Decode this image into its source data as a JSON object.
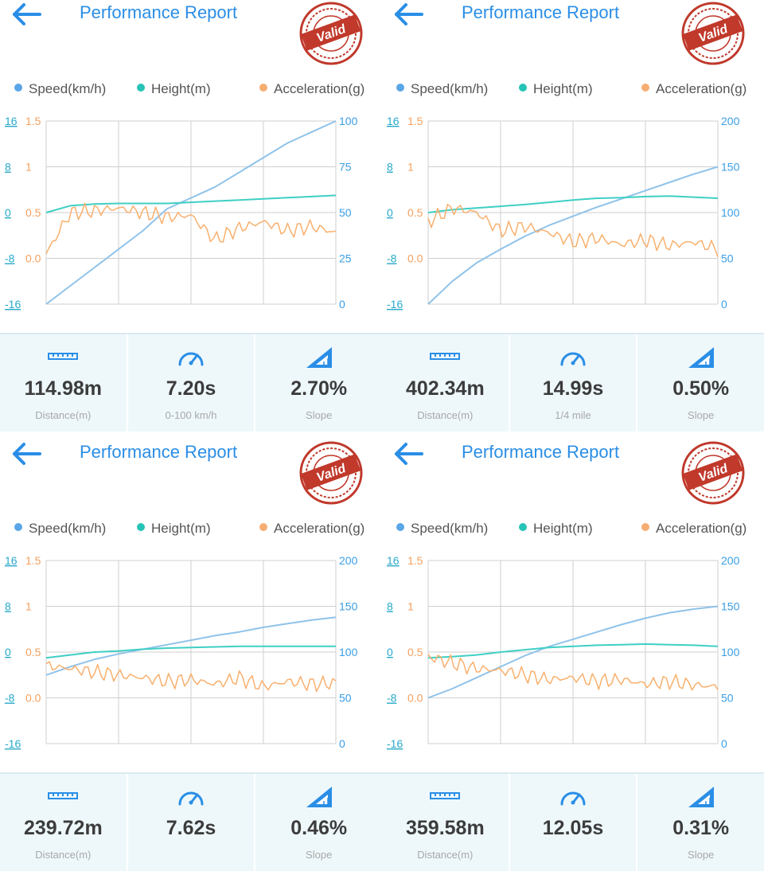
{
  "colors": {
    "accent": "#2a8ee6",
    "speed": "#8fc3ea",
    "height": "#3fcfc4",
    "accel": "#f8b06e",
    "stamp": "#c0392b"
  },
  "icons": {
    "back": "arrow-left-icon",
    "stamp": "valid-stamp",
    "distance": "ruler-icon",
    "time": "speedometer-icon",
    "slope": "slope-icon"
  },
  "panels": [
    {
      "title": "Performance Report",
      "stamp": "Valid",
      "legend": [
        "Speed(km/h)",
        "Height(m)",
        "Acceleration(g)"
      ],
      "axes": {
        "height_ticks": [
          "16",
          "8",
          "0",
          "-8",
          "-16"
        ],
        "accel_ticks": [
          "1.5",
          "1",
          "0.5",
          "0.0"
        ],
        "speed_ticks": [
          "100",
          "75",
          "50",
          "25",
          "0"
        ]
      },
      "stats": [
        {
          "value": "114.98m",
          "label": "Distance(m)"
        },
        {
          "value": "7.20s",
          "label": "0-100 km/h"
        },
        {
          "value": "2.70%",
          "label": "Slope"
        }
      ],
      "chart_data": {
        "type": "line",
        "speed_max": 100,
        "series": [
          {
            "name": "Speed(km/h)",
            "axis": "right",
            "values": [
              0,
              10,
              20,
              30,
              40,
              52,
              58,
              64,
              72,
              80,
              88,
              94,
              100
            ]
          },
          {
            "name": "Height(m)",
            "axis": "left",
            "values": [
              0,
              1.2,
              1.5,
              1.6,
              1.6,
              1.6,
              1.8,
              2.0,
              2.2,
              2.4,
              2.6,
              2.8,
              3.0
            ]
          },
          {
            "name": "Acceleration(g)",
            "axis": "left2",
            "values": [
              0.05,
              0.5,
              0.52,
              0.55,
              0.5,
              0.45,
              0.47,
              0.2,
              0.33,
              0.4,
              0.3,
              0.35,
              0.28
            ]
          }
        ]
      }
    },
    {
      "title": "Performance Report",
      "stamp": "Valid",
      "legend": [
        "Speed(km/h)",
        "Height(m)",
        "Acceleration(g)"
      ],
      "axes": {
        "height_ticks": [
          "16",
          "8",
          "0",
          "-8",
          "-16"
        ],
        "accel_ticks": [
          "1.5",
          "1",
          "0.5",
          "0.0"
        ],
        "speed_ticks": [
          "200",
          "150",
          "100",
          "50",
          "0"
        ]
      },
      "stats": [
        {
          "value": "402.34m",
          "label": "Distance(m)"
        },
        {
          "value": "14.99s",
          "label": "1/4 mile"
        },
        {
          "value": "0.50%",
          "label": "Slope"
        }
      ],
      "chart_data": {
        "type": "line",
        "speed_max": 200,
        "series": [
          {
            "name": "Speed(km/h)",
            "axis": "right",
            "values": [
              0,
              25,
              45,
              60,
              74,
              86,
              96,
              106,
              115,
              124,
              133,
              142,
              150
            ]
          },
          {
            "name": "Height(m)",
            "axis": "left",
            "values": [
              0,
              0.5,
              0.8,
              1.1,
              1.4,
              1.8,
              2.2,
              2.5,
              2.6,
              2.8,
              2.9,
              2.7,
              2.5
            ]
          },
          {
            "name": "Acceleration(g)",
            "axis": "left2",
            "values": [
              0.4,
              0.55,
              0.5,
              0.3,
              0.35,
              0.28,
              0.18,
              0.22,
              0.15,
              0.2,
              0.14,
              0.18,
              0.1
            ]
          }
        ]
      }
    },
    {
      "title": "Performance Report",
      "stamp": "Valid",
      "legend": [
        "Speed(km/h)",
        "Height(m)",
        "Acceleration(g)"
      ],
      "axes": {
        "height_ticks": [
          "16",
          "8",
          "0",
          "-8",
          "-16"
        ],
        "accel_ticks": [
          "1.5",
          "1",
          "0.5",
          "0.0"
        ],
        "speed_ticks": [
          "200",
          "150",
          "100",
          "50",
          "0"
        ]
      },
      "stats": [
        {
          "value": "239.72m",
          "label": "Distance(m)"
        },
        {
          "value": "7.62s",
          "label": ""
        },
        {
          "value": "0.46%",
          "label": "Slope"
        }
      ],
      "chart_data": {
        "type": "line",
        "speed_max": 200,
        "series": [
          {
            "name": "Speed(km/h)",
            "axis": "right",
            "values": [
              75,
              84,
              92,
              98,
              103,
              108,
              113,
              118,
              122,
              127,
              131,
              135,
              138
            ]
          },
          {
            "name": "Height(m)",
            "axis": "left",
            "values": [
              -1,
              -0.5,
              0,
              0.2,
              0.5,
              0.7,
              0.8,
              0.9,
              1.0,
              1.0,
              1.0,
              1.0,
              1.0
            ]
          },
          {
            "name": "Acceleration(g)",
            "axis": "left2",
            "values": [
              0.35,
              0.32,
              0.28,
              0.25,
              0.22,
              0.18,
              0.2,
              0.15,
              0.22,
              0.12,
              0.18,
              0.15,
              0.16
            ]
          }
        ]
      }
    },
    {
      "title": "Performance Report",
      "stamp": "Valid",
      "legend": [
        "Speed(km/h)",
        "Height(m)",
        "Acceleration(g)"
      ],
      "axes": {
        "height_ticks": [
          "16",
          "8",
          "0",
          "-8",
          "-16"
        ],
        "accel_ticks": [
          "1.5",
          "1",
          "0.5",
          "0.0"
        ],
        "speed_ticks": [
          "200",
          "150",
          "100",
          "50",
          "0"
        ]
      },
      "stats": [
        {
          "value": "359.58m",
          "label": "Distance(m)"
        },
        {
          "value": "12.05s",
          "label": ""
        },
        {
          "value": "0.31%",
          "label": "Slope"
        }
      ],
      "chart_data": {
        "type": "line",
        "speed_max": 200,
        "series": [
          {
            "name": "Speed(km/h)",
            "axis": "right",
            "values": [
              50,
              60,
              72,
              84,
              96,
              106,
              114,
              122,
              130,
              137,
              143,
              147,
              150
            ]
          },
          {
            "name": "Height(m)",
            "axis": "left",
            "values": [
              -1,
              -0.8,
              -0.5,
              0,
              0.4,
              0.8,
              1.0,
              1.2,
              1.3,
              1.4,
              1.3,
              1.2,
              1.0
            ]
          },
          {
            "name": "Acceleration(g)",
            "axis": "left2",
            "values": [
              0.45,
              0.38,
              0.32,
              0.3,
              0.25,
              0.2,
              0.22,
              0.18,
              0.2,
              0.15,
              0.18,
              0.14,
              0.12
            ]
          }
        ]
      }
    }
  ]
}
